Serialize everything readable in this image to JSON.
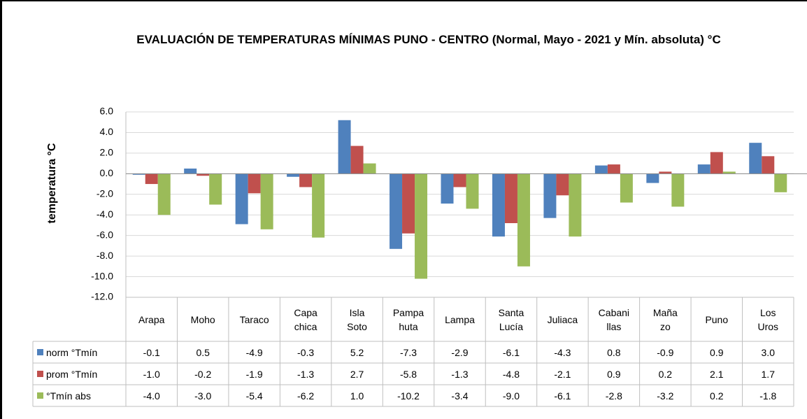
{
  "chart_data": {
    "type": "bar",
    "title": "EVALUACIÓN DE TEMPERATURAS MÍNIMAS PUNO - CENTRO (Normal, Mayo - 2021 y Mín. absoluta) °C",
    "y_label": "temperatura °C",
    "categories": [
      "Arapa",
      "Moho",
      "Taraco",
      "Capa chica",
      "Isla Soto",
      "Pampa huta",
      "Lampa",
      "Santa Lucía",
      "Juliaca",
      "Cabani llas",
      "Maña zo",
      "Puno",
      "Los Uros"
    ],
    "series": [
      {
        "name": "norm °Tmín",
        "color": "#4f81bd",
        "values": [
          -0.1,
          0.5,
          -4.9,
          -0.3,
          5.2,
          -7.3,
          -2.9,
          -6.1,
          -4.3,
          0.8,
          -0.9,
          0.9,
          3.0
        ],
        "value_labels": [
          "-0.1",
          "0.5",
          "-4.9",
          "-0.3",
          "5.2",
          "-7.3",
          "-2.9",
          "-6.1",
          "-4.3",
          "0.8",
          "-0.9",
          "0.9",
          "3.0"
        ]
      },
      {
        "name": "prom °Tmín",
        "color": "#c0504d",
        "values": [
          -1.0,
          -0.2,
          -1.9,
          -1.3,
          2.7,
          -5.8,
          -1.3,
          -4.8,
          -2.1,
          0.9,
          0.2,
          2.1,
          1.7
        ],
        "value_labels": [
          "-1.0",
          "-0.2",
          "-1.9",
          "-1.3",
          "2.7",
          "-5.8",
          "-1.3",
          "-4.8",
          "-2.1",
          "0.9",
          "0.2",
          "2.1",
          "1.7"
        ]
      },
      {
        "name": "°Tmín abs",
        "color": "#9bbb59",
        "values": [
          -4.0,
          -3.0,
          -5.4,
          -6.2,
          1.0,
          -10.2,
          -3.4,
          -9.0,
          -6.1,
          -2.8,
          -3.2,
          0.2,
          -1.8
        ],
        "value_labels": [
          "-4.0",
          "-3.0",
          "-5.4",
          "-6.2",
          "1.0",
          "-10.2",
          "-3.4",
          "-9.0",
          "-6.1",
          "-2.8",
          "-3.2",
          "0.2",
          "-1.8"
        ]
      }
    ],
    "ylim": [
      -12,
      6
    ],
    "yticks": [
      {
        "value": -12,
        "label": "-12.0"
      },
      {
        "value": -10,
        "label": "-10.0"
      },
      {
        "value": -8,
        "label": "-8.0"
      },
      {
        "value": -6,
        "label": "-6.0"
      },
      {
        "value": -4,
        "label": "-4.0"
      },
      {
        "value": -2,
        "label": "-2.0"
      },
      {
        "value": 0,
        "label": "0.0"
      },
      {
        "value": 2,
        "label": "2.0"
      },
      {
        "value": 4,
        "label": "4.0"
      },
      {
        "value": 6,
        "label": "6.0"
      }
    ],
    "grid": true
  }
}
